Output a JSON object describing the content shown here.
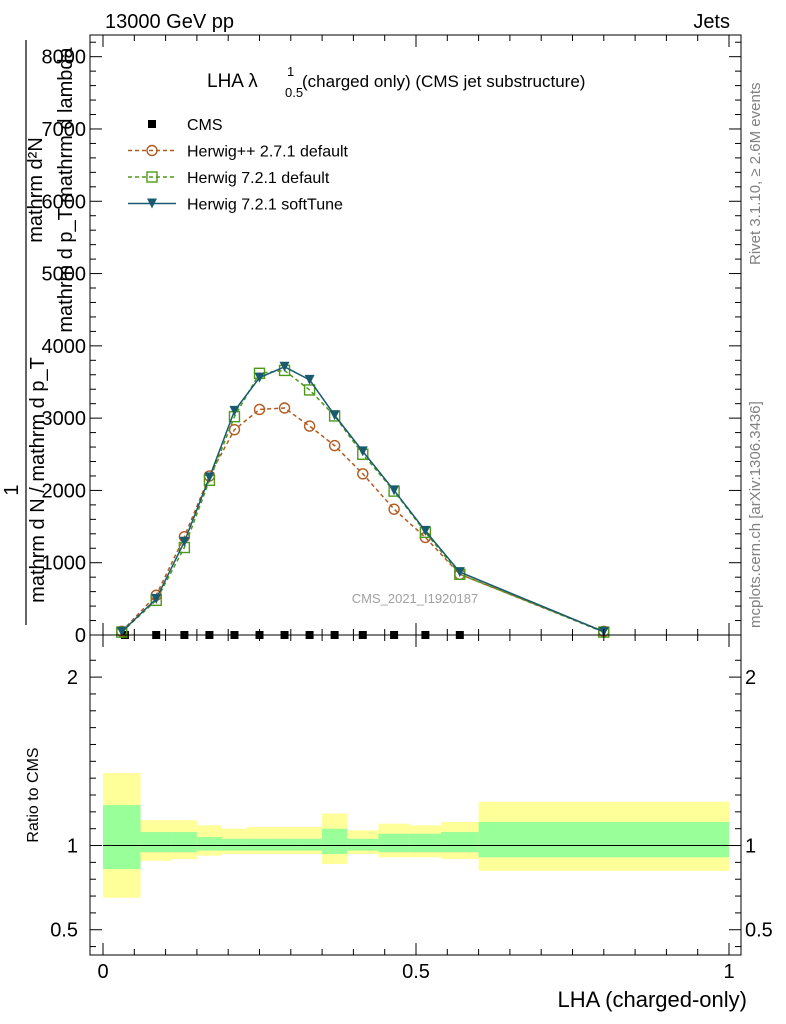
{
  "header": {
    "left": "13000 GeV pp",
    "right": "Jets"
  },
  "side_text": {
    "top": "Rivet 3.1.10, ≥ 2.6M events",
    "bottom": "mcplots.cern.ch [arXiv:1306.3436]"
  },
  "watermark": "CMS_2021_I1920187",
  "chart_data": {
    "type": "line",
    "title": "LHA λ",
    "title_sup": "1",
    "title_sub": "0.5",
    "title_rest": "(charged only) (CMS jet substructure)",
    "xlabel": "LHA (charged-only)",
    "ylabel_num": "mathrm d²N",
    "ylabel_den": "mathrm d p_T mathrm d lambda",
    "ylabel_frac_num": "1",
    "ylabel_frac_den": "mathrm d N / mathrm d p_T",
    "ratio_ylabel": "Ratio to CMS",
    "xlim": [
      0,
      1
    ],
    "ylim": [
      0,
      8300
    ],
    "ratio_ylim": [
      0.35,
      2.25
    ],
    "x_ticks": [
      "0",
      "0.5",
      "1"
    ],
    "y_ticks": [
      "0",
      "1000",
      "2000",
      "3000",
      "4000",
      "5000",
      "6000",
      "7000",
      "8000"
    ],
    "ratio_ticks": [
      "0.5",
      "1",
      "2"
    ],
    "legend_position": "top-left",
    "series": [
      {
        "name": "CMS",
        "color": "#000000",
        "marker": "square-filled",
        "x": [
          0.035,
          0.085,
          0.13,
          0.17,
          0.21,
          0.25,
          0.29,
          0.33,
          0.37,
          0.415,
          0.465,
          0.515,
          0.57
        ],
        "y": [
          0,
          0,
          0,
          0,
          0,
          0,
          0,
          0,
          0,
          0,
          0,
          0,
          0
        ]
      },
      {
        "name": "Herwig++ 2.7.1 default",
        "color": "#b35a1f",
        "marker": "circle-open",
        "dash": true,
        "x": [
          0.03,
          0.085,
          0.13,
          0.17,
          0.21,
          0.25,
          0.29,
          0.33,
          0.37,
          0.415,
          0.465,
          0.515,
          0.57,
          0.8
        ],
        "y": [
          50,
          550,
          1360,
          2200,
          2840,
          3120,
          3140,
          2890,
          2620,
          2230,
          1740,
          1350,
          840,
          50
        ]
      },
      {
        "name": "Herwig 7.2.1 default",
        "color": "#4d9a19",
        "marker": "square-open",
        "dash": true,
        "x": [
          0.03,
          0.085,
          0.13,
          0.17,
          0.21,
          0.25,
          0.29,
          0.33,
          0.37,
          0.415,
          0.465,
          0.515,
          0.57,
          0.8
        ],
        "y": [
          40,
          480,
          1210,
          2140,
          3020,
          3620,
          3660,
          3390,
          3030,
          2500,
          1990,
          1420,
          840,
          40
        ]
      },
      {
        "name": "Herwig 7.2.1 softTune",
        "color": "#1a5a6e",
        "marker": "triangle-down",
        "x": [
          0.03,
          0.085,
          0.13,
          0.17,
          0.21,
          0.25,
          0.29,
          0.33,
          0.37,
          0.415,
          0.465,
          0.515,
          0.57,
          0.8
        ],
        "y": [
          45,
          500,
          1290,
          2180,
          3100,
          3560,
          3710,
          3530,
          3040,
          2540,
          2000,
          1440,
          870,
          45
        ]
      }
    ],
    "ratio_bands": [
      {
        "x0": 0.0,
        "x1": 0.06,
        "outer": [
          0.69,
          1.43
        ],
        "inner": [
          0.86,
          1.24
        ]
      },
      {
        "x0": 0.06,
        "x1": 0.11,
        "outer": [
          0.91,
          1.15
        ],
        "inner": [
          0.96,
          1.08
        ]
      },
      {
        "x0": 0.11,
        "x1": 0.15,
        "outer": [
          0.92,
          1.15
        ],
        "inner": [
          0.96,
          1.08
        ]
      },
      {
        "x0": 0.15,
        "x1": 0.19,
        "outer": [
          0.94,
          1.12
        ],
        "inner": [
          0.97,
          1.05
        ]
      },
      {
        "x0": 0.19,
        "x1": 0.23,
        "outer": [
          0.95,
          1.1
        ],
        "inner": [
          0.97,
          1.04
        ]
      },
      {
        "x0": 0.23,
        "x1": 0.27,
        "outer": [
          0.95,
          1.11
        ],
        "inner": [
          0.97,
          1.04
        ]
      },
      {
        "x0": 0.27,
        "x1": 0.31,
        "outer": [
          0.95,
          1.11
        ],
        "inner": [
          0.97,
          1.04
        ]
      },
      {
        "x0": 0.31,
        "x1": 0.35,
        "outer": [
          0.95,
          1.11
        ],
        "inner": [
          0.97,
          1.04
        ]
      },
      {
        "x0": 0.35,
        "x1": 0.39,
        "outer": [
          0.89,
          1.19
        ],
        "inner": [
          0.95,
          1.1
        ]
      },
      {
        "x0": 0.39,
        "x1": 0.44,
        "outer": [
          0.95,
          1.09
        ],
        "inner": [
          0.97,
          1.04
        ]
      },
      {
        "x0": 0.44,
        "x1": 0.49,
        "outer": [
          0.93,
          1.13
        ],
        "inner": [
          0.96,
          1.07
        ]
      },
      {
        "x0": 0.49,
        "x1": 0.54,
        "outer": [
          0.93,
          1.12
        ],
        "inner": [
          0.96,
          1.07
        ]
      },
      {
        "x0": 0.54,
        "x1": 0.6,
        "outer": [
          0.92,
          1.14
        ],
        "inner": [
          0.96,
          1.08
        ]
      },
      {
        "x0": 0.6,
        "x1": 1.0,
        "outer": [
          0.85,
          1.26
        ],
        "inner": [
          0.93,
          1.14
        ]
      }
    ]
  }
}
